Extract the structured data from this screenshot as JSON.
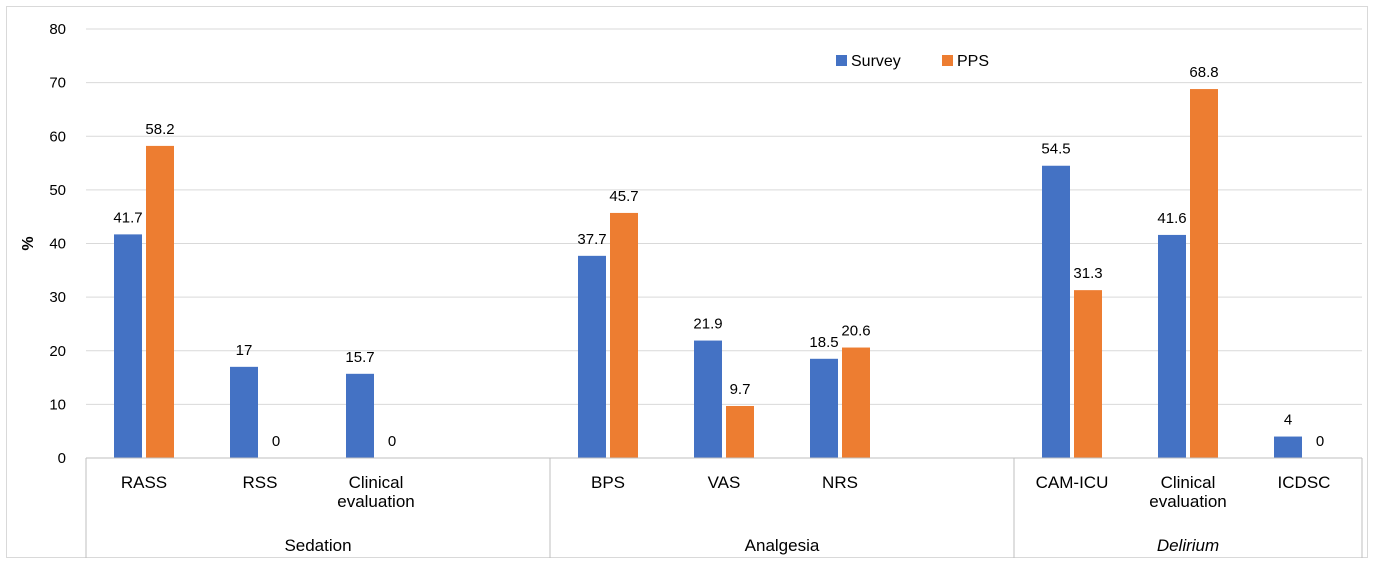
{
  "chart_data": {
    "type": "bar",
    "title": "",
    "ylabel": "%",
    "ylim": [
      0,
      80
    ],
    "yticks": [
      "0",
      "10",
      "20",
      "30",
      "40",
      "50",
      "60",
      "70",
      "80"
    ],
    "grid": true,
    "legend": "top-right",
    "groups": [
      {
        "name": "Sedation",
        "italic": false,
        "categories": [
          [
            "RASS"
          ],
          [
            "RSS"
          ],
          [
            "Clinical",
            "evaluation"
          ]
        ],
        "slots": 4
      },
      {
        "name": "Analgesia",
        "italic": false,
        "categories": [
          [
            "BPS"
          ],
          [
            "VAS"
          ],
          [
            "NRS"
          ]
        ],
        "slots": 4
      },
      {
        "name": "Delirium",
        "italic": true,
        "categories": [
          [
            "CAM-ICU"
          ],
          [
            "Clinical",
            "evaluation"
          ],
          [
            "ICDSC"
          ]
        ],
        "slots": 3
      }
    ],
    "series": [
      {
        "name": "Survey",
        "color": "#4472c4",
        "values": [
          41.7,
          17,
          15.7,
          37.7,
          21.9,
          18.5,
          54.5,
          41.6,
          4
        ],
        "labels": [
          "41.7",
          "17",
          "15.7",
          "37.7",
          "21.9",
          "18.5",
          "54.5",
          "41.6",
          "4"
        ]
      },
      {
        "name": "PPS",
        "color": "#ed7d31",
        "values": [
          58.2,
          0,
          0,
          45.7,
          9.7,
          20.6,
          31.3,
          68.8,
          0
        ],
        "labels": [
          "58.2",
          "0",
          "0",
          "45.7",
          "9.7",
          "20.6",
          "31.3",
          "68.8",
          "0"
        ]
      }
    ]
  }
}
